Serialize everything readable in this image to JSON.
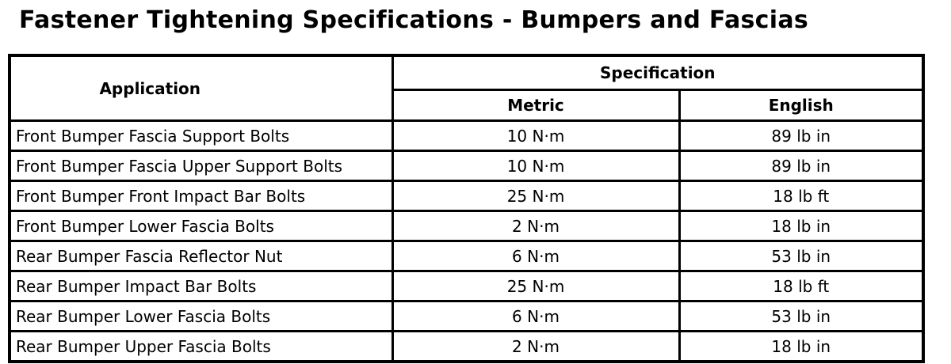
{
  "title": "Fastener Tightening Specifications - Bumpers and Fascias",
  "colors": {
    "background": "#ffffff",
    "text": "#000000",
    "border": "#000000"
  },
  "table": {
    "col_application": "Application",
    "col_specification": "Specification",
    "col_metric": "Metric",
    "col_english": "English",
    "rows": [
      {
        "application": "Front Bumper Fascia Support Bolts",
        "metric": "10 N·m",
        "english": "89 lb in"
      },
      {
        "application": "Front Bumper Fascia Upper Support Bolts",
        "metric": "10 N·m",
        "english": "89 lb in"
      },
      {
        "application": "Front Bumper Front Impact Bar Bolts",
        "metric": "25 N·m",
        "english": "18 lb ft"
      },
      {
        "application": "Front Bumper Lower Fascia Bolts",
        "metric": "2 N·m",
        "english": "18 lb in"
      },
      {
        "application": "Rear Bumper Fascia Reflector Nut",
        "metric": "6 N·m",
        "english": "53 lb in"
      },
      {
        "application": "Rear Bumper Impact Bar Bolts",
        "metric": "25 N·m",
        "english": "18 lb ft"
      },
      {
        "application": "Rear Bumper Lower Fascia Bolts",
        "metric": "6 N·m",
        "english": "53 lb in"
      },
      {
        "application": "Rear Bumper Upper Fascia Bolts",
        "metric": "2 N·m",
        "english": "18 lb in"
      }
    ]
  }
}
